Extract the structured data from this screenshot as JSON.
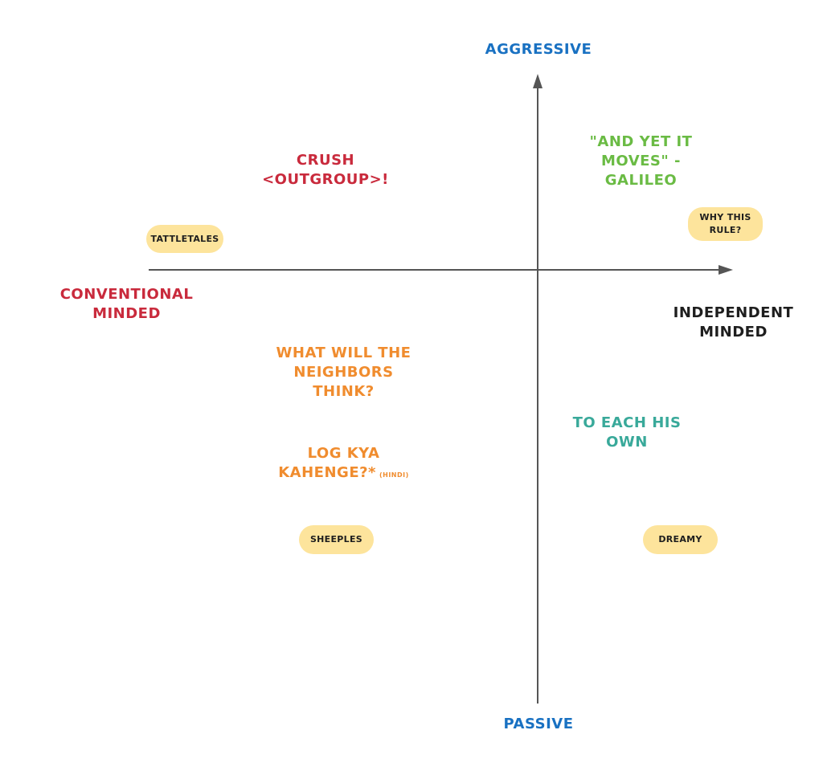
{
  "colors": {
    "axis": "#555555",
    "blue": "#1971c2",
    "red": "#c92a3c",
    "green": "#6abb44",
    "orange": "#f08c2e",
    "teal": "#39a99a",
    "dark": "#1e1e1e",
    "pill_bg": "#fde49c"
  },
  "axes": {
    "top_label": "AGGRESSIVE",
    "bottom_label": "PASSIVE",
    "left_label_line1": "CONVENTIONAL",
    "left_label_line2": "MINDED",
    "right_label_line1": "INDEPENDENT",
    "right_label_line2": "MINDED"
  },
  "quotes": {
    "crush_line1": "CRUSH",
    "crush_line2": "<OUTGROUP>!",
    "galileo_line1": "\"AND YET IT",
    "galileo_line2": "MOVES\" -",
    "galileo_line3": "GALILEO",
    "neighbors_line1": "WHAT WILL THE",
    "neighbors_line2": "NEIGHBORS",
    "neighbors_line3": "THINK?",
    "log_line1": "LOG KYA",
    "log_line2": "KAHENGE?*",
    "log_note": "(HINDI)",
    "each_line1": "TO EACH HIS",
    "each_line2": "OWN"
  },
  "tags": {
    "tattletales": "TATTLETALES",
    "why_line1": "WHY THIS",
    "why_line2": "RULE?",
    "sheeples": "SHEEPLES",
    "dreamy": "DREAMY"
  }
}
